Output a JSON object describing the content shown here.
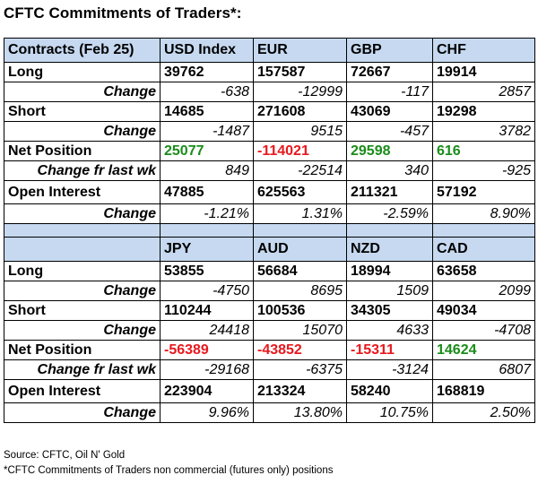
{
  "title": "CFTC Commitments of Traders*:",
  "labels": {
    "contracts": "Contracts (Feb 25)",
    "long": "Long",
    "short": "Short",
    "change": "Change",
    "net_position": "Net Position",
    "change_last_wk": "Change fr last wk",
    "open_interest": "Open Interest"
  },
  "block1": {
    "currencies": [
      "USD Index",
      "EUR",
      "GBP",
      "CHF"
    ],
    "long": [
      "39762",
      "157587",
      "72667",
      "19914"
    ],
    "long_change": [
      "-638",
      "-12999",
      "-117",
      "2857"
    ],
    "short": [
      "14685",
      "271608",
      "43069",
      "19298"
    ],
    "short_change": [
      "-1487",
      "9515",
      "-457",
      "3782"
    ],
    "net": [
      "25077",
      "-114021",
      "29598",
      "616"
    ],
    "net_change": [
      "849",
      "-22514",
      "340",
      "-925"
    ],
    "oi": [
      "47885",
      "625563",
      "211321",
      "57192"
    ],
    "oi_change": [
      "-1.21%",
      "1.31%",
      "-2.59%",
      "8.90%"
    ]
  },
  "block2": {
    "currencies": [
      "JPY",
      "AUD",
      "NZD",
      "CAD"
    ],
    "long": [
      "53855",
      "56684",
      "18994",
      "63658"
    ],
    "long_change": [
      "-4750",
      "8695",
      "1509",
      "2099"
    ],
    "short": [
      "110244",
      "100536",
      "34305",
      "49034"
    ],
    "short_change": [
      "24418",
      "15070",
      "4633",
      "-4708"
    ],
    "net": [
      "-56389",
      "-43852",
      "-15311",
      "14624"
    ],
    "net_change": [
      "-29168",
      "-6375",
      "-3124",
      "6807"
    ],
    "oi": [
      "223904",
      "213324",
      "58240",
      "168819"
    ],
    "oi_change": [
      "9.96%",
      "13.80%",
      "10.75%",
      "2.50%"
    ]
  },
  "colors": {
    "header_bg": "#c6d9f0",
    "positive": "#1a8c1a",
    "negative": "#e8191e"
  },
  "footer": {
    "source": "Source: CFTC, Oil N' Gold",
    "note": "*CFTC Commitments of Traders non commercial (futures only) positions"
  }
}
